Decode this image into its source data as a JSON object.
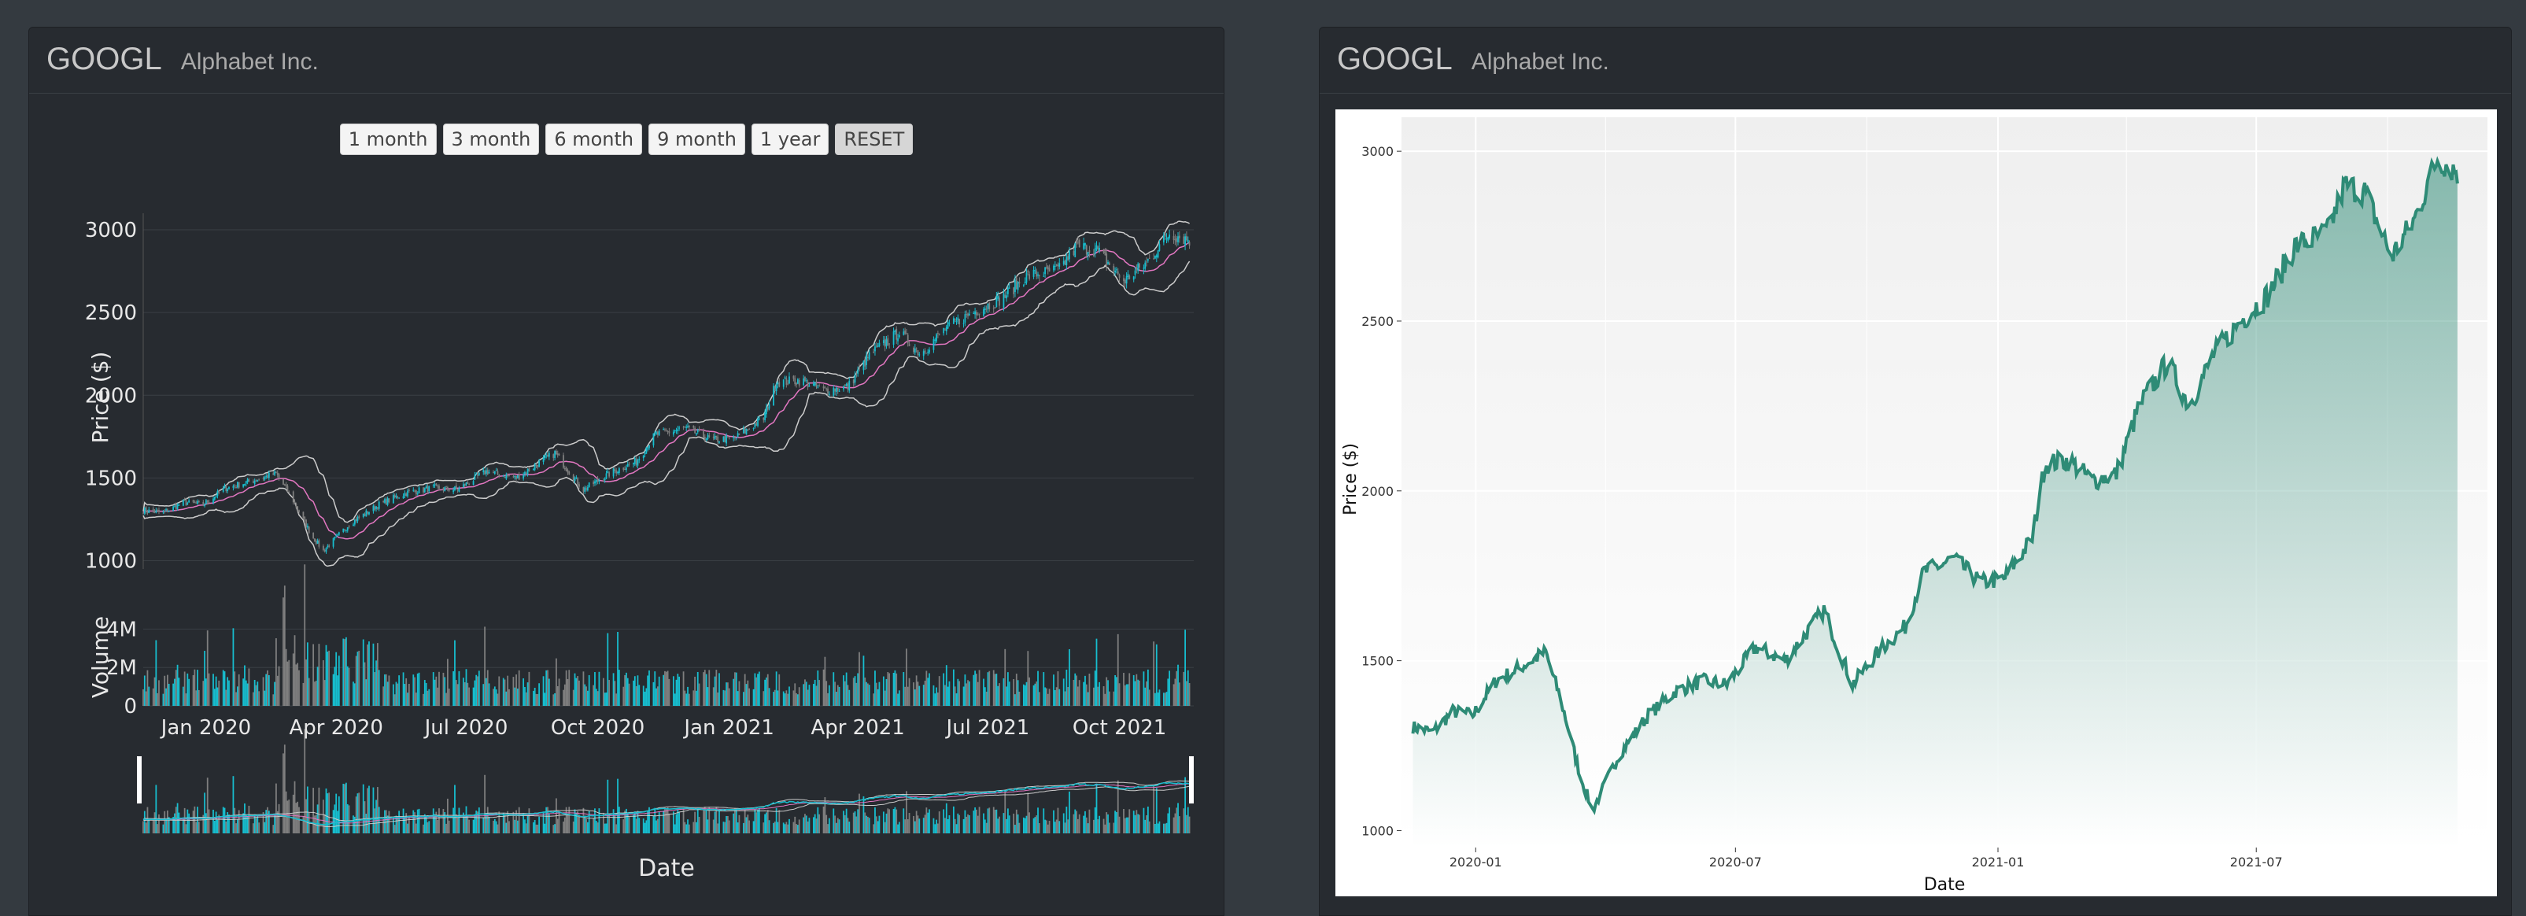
{
  "left_card": {
    "ticker": "GOOGL",
    "company": "Alphabet Inc.",
    "range_buttons": [
      "1 month",
      "3 month",
      "6 month",
      "9 month",
      "1 year",
      "RESET"
    ],
    "y_label": "Price ($)",
    "volume_label": "Volume",
    "x_label": "Date"
  },
  "right_card": {
    "ticker": "GOOGL",
    "company": "Alphabet Inc.",
    "y_label": "Price ($)",
    "x_label": "Date"
  },
  "colors": {
    "up": "#17becf",
    "down": "#7f7f7f",
    "band": "#cccccc",
    "ma": "#e377c2",
    "right_line": "#2e8b76"
  },
  "chart_data": [
    {
      "type": "line",
      "chart": "candlestick-with-bollinger-and-volume",
      "x_ticks": [
        "Jan 2020",
        "Apr 2020",
        "Jul 2020",
        "Oct 2020",
        "Jan 2021",
        "Apr 2021",
        "Jul 2021",
        "Oct 2021"
      ],
      "y_ticks": [
        1000,
        1500,
        2000,
        2500,
        3000
      ],
      "ylim": [
        950,
        3100
      ],
      "volume_ticks": [
        "0",
        "2M",
        "4M"
      ],
      "volume_ylim": [
        0,
        5000000
      ],
      "x_range": [
        "2019-11-18",
        "2021-11-22"
      ],
      "close_points": [
        {
          "date": "2019-11-18",
          "value": 1305
        },
        {
          "date": "2019-12-02",
          "value": 1290
        },
        {
          "date": "2019-12-16",
          "value": 1350
        },
        {
          "date": "2019-12-30",
          "value": 1340
        },
        {
          "date": "2020-01-15",
          "value": 1440
        },
        {
          "date": "2020-02-01",
          "value": 1480
        },
        {
          "date": "2020-02-19",
          "value": 1525
        },
        {
          "date": "2020-03-01",
          "value": 1380
        },
        {
          "date": "2020-03-15",
          "value": 1150
        },
        {
          "date": "2020-03-23",
          "value": 1060
        },
        {
          "date": "2020-04-10",
          "value": 1220
        },
        {
          "date": "2020-05-01",
          "value": 1340
        },
        {
          "date": "2020-05-20",
          "value": 1410
        },
        {
          "date": "2020-06-08",
          "value": 1440
        },
        {
          "date": "2020-06-25",
          "value": 1430
        },
        {
          "date": "2020-07-15",
          "value": 1540
        },
        {
          "date": "2020-08-05",
          "value": 1500
        },
        {
          "date": "2020-09-01",
          "value": 1650
        },
        {
          "date": "2020-09-21",
          "value": 1430
        },
        {
          "date": "2020-10-10",
          "value": 1530
        },
        {
          "date": "2020-10-28",
          "value": 1600
        },
        {
          "date": "2020-11-10",
          "value": 1760
        },
        {
          "date": "2020-12-01",
          "value": 1800
        },
        {
          "date": "2020-12-20",
          "value": 1730
        },
        {
          "date": "2021-01-05",
          "value": 1740
        },
        {
          "date": "2021-01-25",
          "value": 1860
        },
        {
          "date": "2021-02-03",
          "value": 2080
        },
        {
          "date": "2021-02-20",
          "value": 2090
        },
        {
          "date": "2021-03-08",
          "value": 2030
        },
        {
          "date": "2021-03-25",
          "value": 2050
        },
        {
          "date": "2021-04-10",
          "value": 2250
        },
        {
          "date": "2021-04-30",
          "value": 2380
        },
        {
          "date": "2021-05-15",
          "value": 2250
        },
        {
          "date": "2021-06-01",
          "value": 2400
        },
        {
          "date": "2021-06-20",
          "value": 2500
        },
        {
          "date": "2021-07-10",
          "value": 2580
        },
        {
          "date": "2021-07-28",
          "value": 2720
        },
        {
          "date": "2021-08-20",
          "value": 2760
        },
        {
          "date": "2021-09-01",
          "value": 2900
        },
        {
          "date": "2021-09-15",
          "value": 2880
        },
        {
          "date": "2021-10-04",
          "value": 2690
        },
        {
          "date": "2021-10-20",
          "value": 2800
        },
        {
          "date": "2021-11-05",
          "value": 2980
        },
        {
          "date": "2021-11-19",
          "value": 2940
        }
      ]
    },
    {
      "type": "area",
      "chart": "ggplot-close-price",
      "x_ticks": [
        "2020-01",
        "2020-07",
        "2021-01",
        "2021-07"
      ],
      "y_ticks": [
        1000,
        1500,
        2000,
        2500,
        3000
      ],
      "ylim": [
        950,
        3100
      ],
      "x_range": [
        "2019-11-10",
        "2021-12-10"
      ],
      "ylabel": "Price ($)",
      "xlabel": "Date"
    }
  ]
}
